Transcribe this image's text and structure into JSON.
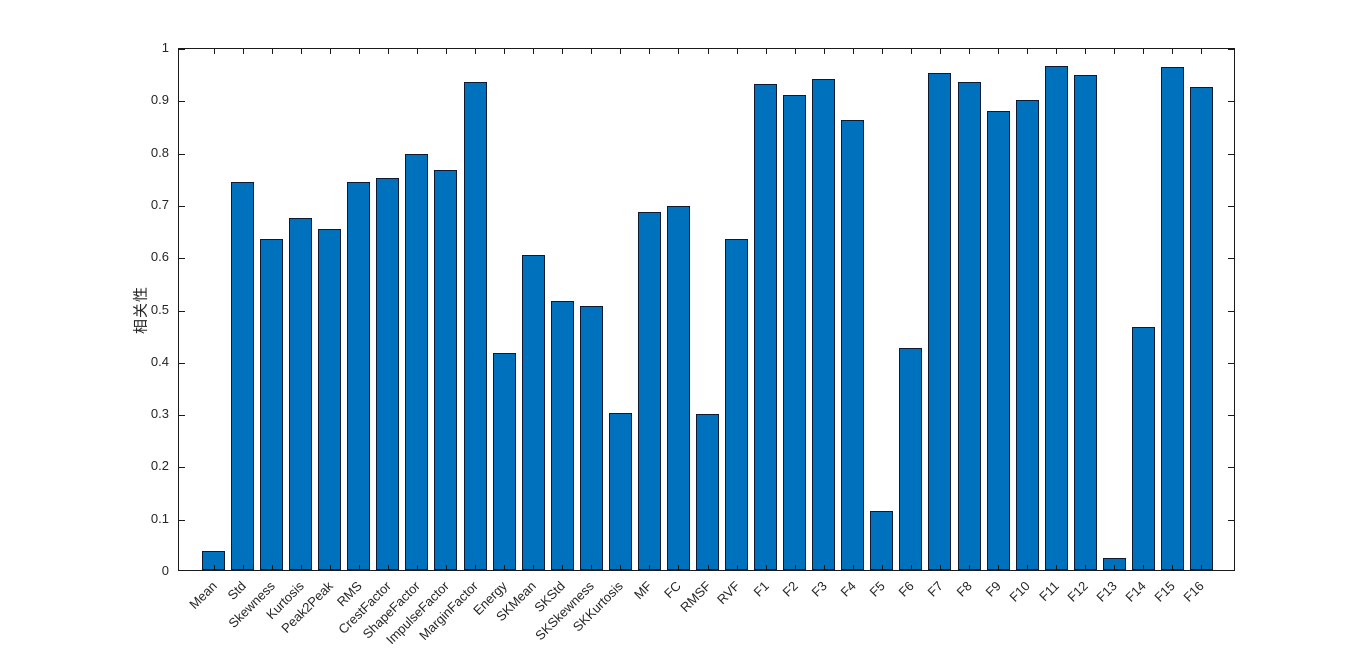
{
  "figure": {
    "background": "#ffffff"
  },
  "chart_data": {
    "type": "bar",
    "title": "",
    "xlabel": "",
    "ylabel": "相关性",
    "categories": [
      "Mean",
      "Std",
      "Skewness",
      "Kurtosis",
      "Peak2Peak",
      "RMS",
      "CrestFactor",
      "ShapeFactor",
      "ImpulseFactor",
      "MarginFactor",
      "Energy",
      "SKMean",
      "SKStd",
      "SKSkewness",
      "SKKurtosis",
      "MF",
      "FC",
      "RMSF",
      "RVF",
      "F1",
      "F2",
      "F3",
      "F4",
      "F5",
      "F6",
      "F7",
      "F8",
      "F9",
      "F10",
      "F11",
      "F12",
      "F13",
      "F14",
      "F15",
      "F16"
    ],
    "values": [
      0.037,
      0.742,
      0.633,
      0.673,
      0.652,
      0.742,
      0.75,
      0.796,
      0.764,
      0.933,
      0.415,
      0.602,
      0.515,
      0.505,
      0.3,
      0.685,
      0.696,
      0.299,
      0.633,
      0.929,
      0.908,
      0.939,
      0.86,
      0.112,
      0.424,
      0.95,
      0.933,
      0.877,
      0.898,
      0.963,
      0.946,
      0.022,
      0.465,
      0.962,
      0.924
    ],
    "ylim": [
      0,
      1
    ],
    "ytick_labels": [
      "0",
      "0.1",
      "0.2",
      "0.3",
      "0.4",
      "0.5",
      "0.6",
      "0.7",
      "0.8",
      "0.9",
      "1"
    ],
    "grid": false,
    "legend": null,
    "x_tick_rotation_deg": 45,
    "bar_color": "#0072BD",
    "bar_edge_color": "#0d1a33",
    "axis_color": "#1a1a1a",
    "tick_label_color": "#262626"
  }
}
